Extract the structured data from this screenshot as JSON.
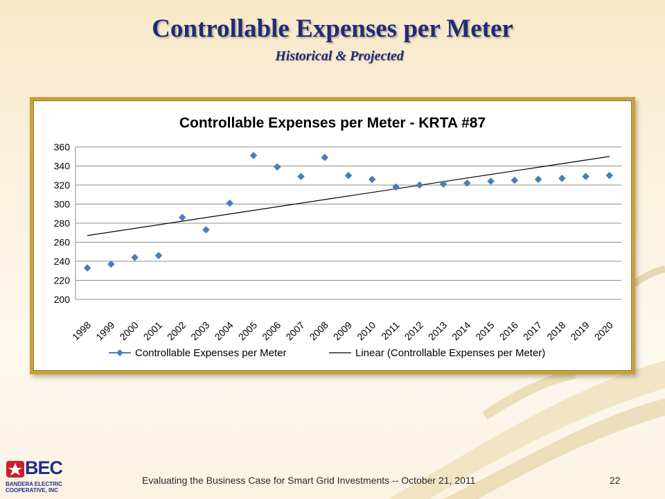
{
  "slide": {
    "title": "Controllable Expenses per Meter",
    "subtitle": "Historical & Projected",
    "footer": "Evaluating the Business Case for Smart Grid Investments -- October 21, 2011",
    "page_number": "22",
    "logo": {
      "name": "BEC",
      "line1": "Bandera Electric",
      "line2": "Cooperative, Inc"
    },
    "colors": {
      "title": "#1f2b7a",
      "frame": "#c7a23c",
      "marker": "#4a7ebb",
      "trend": "#000000"
    }
  },
  "chart_data": {
    "type": "scatter",
    "title": "Controllable Expenses per Meter - KRTA #87",
    "xlabel": "",
    "ylabel": "",
    "categories": [
      "1998",
      "1999",
      "2000",
      "2001",
      "2002",
      "2003",
      "2004",
      "2005",
      "2006",
      "2007",
      "2008",
      "2009",
      "2010",
      "2011",
      "2012",
      "2013",
      "2014",
      "2015",
      "2016",
      "2017",
      "2018",
      "2019",
      "2020"
    ],
    "ylim": [
      200,
      360
    ],
    "yticks": [
      200,
      220,
      240,
      260,
      280,
      300,
      320,
      340,
      360
    ],
    "grid": true,
    "legend_position": "bottom",
    "series": [
      {
        "name": "Controllable Expenses per Meter",
        "marker": "diamond",
        "values": [
          233,
          237,
          244,
          246,
          286,
          273,
          301,
          351,
          339,
          329,
          349,
          330,
          326,
          318,
          320,
          321,
          322,
          324,
          325,
          326,
          327,
          329,
          330
        ]
      },
      {
        "name": "Linear (Controllable Expenses per Meter)",
        "line": "trend",
        "values": [
          267,
          350
        ]
      }
    ]
  }
}
